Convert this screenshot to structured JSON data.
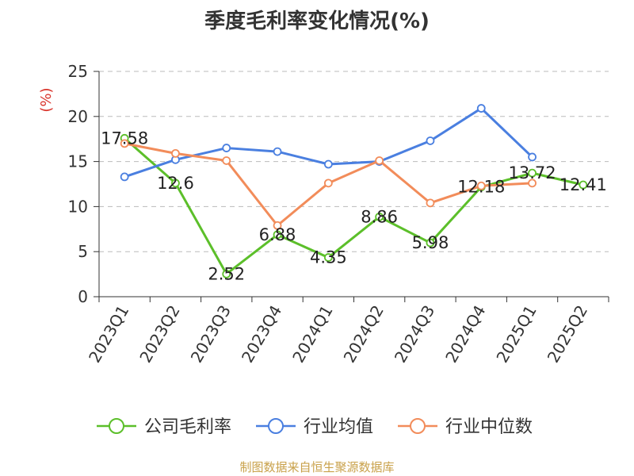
{
  "title": "季度毛利率变化情况(%)",
  "source": "制图数据来自恒生聚源数据库",
  "chart_data": {
    "type": "line",
    "title": "季度毛利率变化情况(%)",
    "ylabel": "(%)",
    "xlabel": "",
    "ylim": [
      0,
      25
    ],
    "yticks": [
      0,
      5,
      10,
      15,
      20,
      25
    ],
    "grid": true,
    "legend_position": "bottom",
    "categories": [
      "2023Q1",
      "2023Q2",
      "2023Q3",
      "2023Q4",
      "2024Q1",
      "2024Q2",
      "2024Q3",
      "2024Q4",
      "2025Q1",
      "2025Q2"
    ],
    "series": [
      {
        "name": "公司毛利率",
        "color": "#5cbf2a",
        "values": [
          17.58,
          12.6,
          2.52,
          6.88,
          4.35,
          8.86,
          5.98,
          12.18,
          13.72,
          12.41
        ],
        "labels": [
          "17.58",
          "12.6",
          "2.52",
          "6.88",
          "4.35",
          "8.86",
          "5.98",
          "12.18",
          "13.72",
          "12.41"
        ]
      },
      {
        "name": "行业均值",
        "color": "#4a7fe0",
        "values": [
          13.3,
          15.2,
          16.5,
          16.1,
          14.7,
          15.0,
          17.3,
          20.9,
          15.5,
          null
        ]
      },
      {
        "name": "行业中位数",
        "color": "#f28c5a",
        "values": [
          17.0,
          15.9,
          15.1,
          7.9,
          12.6,
          15.1,
          10.4,
          12.3,
          12.6,
          null
        ]
      }
    ]
  }
}
